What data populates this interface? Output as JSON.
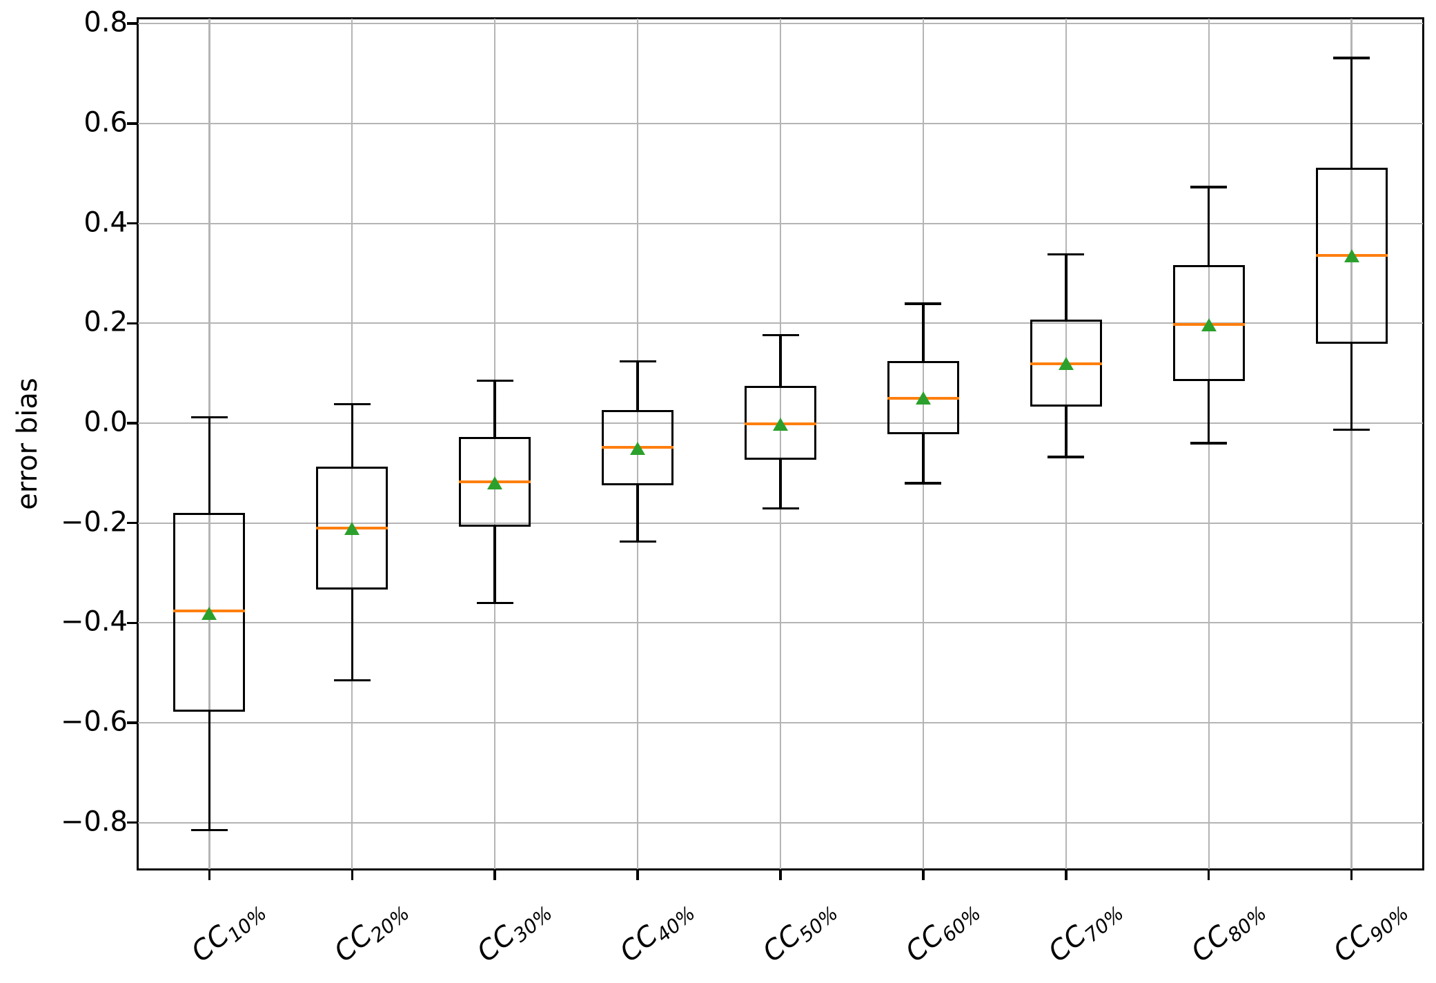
{
  "chart_data": {
    "type": "boxplot",
    "title": "",
    "xlabel": "",
    "ylabel": "error bias",
    "grid": true,
    "legend_position": "none",
    "ylim": [
      -0.893,
      0.81
    ],
    "yticks": [
      0.8,
      0.6,
      0.4,
      0.2,
      0.0,
      -0.2,
      -0.4,
      -0.6,
      -0.8
    ],
    "ytick_labels": [
      "0.8",
      "0.6",
      "0.4",
      "0.2",
      "0.0",
      "−0.2",
      "−0.4",
      "−0.6",
      "−0.8"
    ],
    "categories": [
      {
        "prefix": "CC",
        "sub": "10%",
        "label": "CC10%"
      },
      {
        "prefix": "CC",
        "sub": "20%",
        "label": "CC20%"
      },
      {
        "prefix": "CC",
        "sub": "30%",
        "label": "CC30%"
      },
      {
        "prefix": "CC",
        "sub": "40%",
        "label": "CC40%"
      },
      {
        "prefix": "CC",
        "sub": "50%",
        "label": "CC50%"
      },
      {
        "prefix": "CC",
        "sub": "60%",
        "label": "CC60%"
      },
      {
        "prefix": "CC",
        "sub": "70%",
        "label": "CC70%"
      },
      {
        "prefix": "CC",
        "sub": "80%",
        "label": "CC80%"
      },
      {
        "prefix": "CC",
        "sub": "90%",
        "label": "CC90%"
      }
    ],
    "boxes": [
      {
        "label": "CC10%",
        "whislo": -0.815,
        "q1": -0.578,
        "med": -0.376,
        "mean": -0.381,
        "q3": -0.18,
        "whishi": 0.012
      },
      {
        "label": "CC20%",
        "whislo": -0.515,
        "q1": -0.333,
        "med": -0.21,
        "mean": -0.211,
        "q3": -0.087,
        "whishi": 0.038
      },
      {
        "label": "CC30%",
        "whislo": -0.36,
        "q1": -0.208,
        "med": -0.118,
        "mean": -0.12,
        "q3": -0.028,
        "whishi": 0.085
      },
      {
        "label": "CC40%",
        "whislo": -0.237,
        "q1": -0.124,
        "med": -0.049,
        "mean": -0.05,
        "q3": 0.026,
        "whishi": 0.124
      },
      {
        "label": "CC50%",
        "whislo": -0.171,
        "q1": -0.073,
        "med": -0.001,
        "mean": -0.002,
        "q3": 0.075,
        "whishi": 0.176
      },
      {
        "label": "CC60%",
        "whislo": -0.12,
        "q1": -0.022,
        "med": 0.05,
        "mean": 0.05,
        "q3": 0.124,
        "whishi": 0.239
      },
      {
        "label": "CC70%",
        "whislo": -0.068,
        "q1": 0.033,
        "med": 0.119,
        "mean": 0.12,
        "q3": 0.207,
        "whishi": 0.338
      },
      {
        "label": "CC80%",
        "whislo": -0.04,
        "q1": 0.084,
        "med": 0.197,
        "mean": 0.197,
        "q3": 0.316,
        "whishi": 0.473
      },
      {
        "label": "CC90%",
        "whislo": -0.013,
        "q1": 0.159,
        "med": 0.336,
        "mean": 0.335,
        "q3": 0.511,
        "whishi": 0.731
      }
    ],
    "colors": {
      "box_line": "#000000",
      "median": "#ff7f0e",
      "mean_marker": "#2ca02c",
      "grid": "#b4b4b4",
      "background": "#ffffff"
    },
    "mean_marker_shape": "triangle-up"
  }
}
